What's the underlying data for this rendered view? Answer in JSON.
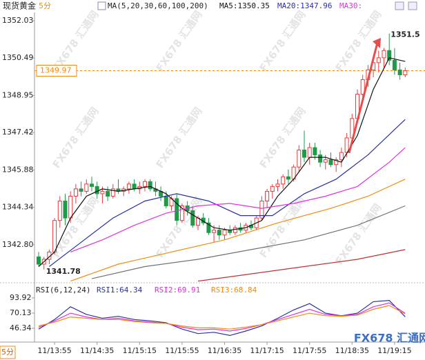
{
  "chart_data": {
    "type": "candlestick",
    "title": "现货黄金",
    "period": "5分",
    "period_button": "5分",
    "ma_legend": "MA(5,20,30,60,100,200)",
    "ma_readouts": [
      "MA5:1350.35",
      "MA20:1347.96",
      "MA30:"
    ],
    "ylim": [
      1341.29,
      1352.37
    ],
    "yticks": [
      {
        "value": 1342.8,
        "label": "1342.80"
      },
      1344.34,
      1345.88,
      1347.42,
      1348.95,
      1350.49,
      1352.03
    ],
    "categories": [
      null,
      null,
      null,
      "11/13:55",
      null,
      null,
      null,
      null,
      null,
      null,
      null,
      "11/14:35",
      null,
      null,
      null,
      null,
      null,
      null,
      null,
      "11/15:15",
      null,
      null,
      null,
      null,
      null,
      null,
      null,
      "11/15:55",
      null,
      null,
      null,
      null,
      null,
      null,
      null,
      "11/16:35",
      null,
      null,
      null,
      null,
      null,
      null,
      null,
      "11/17:15",
      null,
      null,
      null,
      null,
      null,
      null,
      null,
      "11/17:55",
      null,
      null,
      null,
      null,
      null,
      null,
      null,
      "11/18:35",
      null,
      null,
      null,
      null,
      null,
      null,
      null,
      "11/19:15",
      null,
      null
    ],
    "open": [
      1342.3,
      1342.0,
      1342.2,
      1342.5,
      1343.8,
      1344.6,
      1343.9,
      1344.8,
      1345.1,
      1345.0,
      1345.3,
      1345.2,
      1344.9,
      1345.0,
      1344.8,
      1345.1,
      1345.0,
      1345.1,
      1345.3,
      1345.1,
      1345.2,
      1345.4,
      1345.1,
      1345.0,
      1344.8,
      1344.4,
      1344.7,
      1343.8,
      1344.4,
      1344.2,
      1343.6,
      1343.9,
      1343.7,
      1343.3,
      1343.4,
      1343.2,
      1343.4,
      1343.3,
      1343.5,
      1343.4,
      1343.6,
      1343.5,
      1343.9,
      1344.6,
      1345.0,
      1345.2,
      1345.3,
      1345.6,
      1345.5,
      1346.0,
      1346.7,
      1346.4,
      1346.8,
      1346.5,
      1346.2,
      1346.3,
      1346.1,
      1346.3,
      1346.6,
      1347.2,
      1348.0,
      1349.0,
      1349.6,
      1350.0,
      1350.3,
      1350.5,
      1350.8,
      1350.4,
      1350.0,
      1349.8
    ],
    "high": [
      1342.5,
      1342.3,
      1342.6,
      1343.9,
      1344.8,
      1344.9,
      1345.0,
      1345.3,
      1345.4,
      1345.5,
      1345.6,
      1345.4,
      1345.2,
      1345.2,
      1345.3,
      1345.5,
      1345.2,
      1345.4,
      1345.5,
      1345.4,
      1345.5,
      1345.5,
      1345.4,
      1345.2,
      1345.0,
      1344.8,
      1344.9,
      1344.5,
      1344.6,
      1344.4,
      1344.0,
      1344.1,
      1343.9,
      1343.6,
      1343.6,
      1343.5,
      1343.6,
      1343.6,
      1343.7,
      1343.7,
      1343.8,
      1344.0,
      1344.8,
      1345.1,
      1345.3,
      1345.5,
      1345.7,
      1345.9,
      1346.1,
      1346.9,
      1347.5,
      1347.0,
      1347.0,
      1346.7,
      1346.5,
      1346.6,
      1346.4,
      1346.8,
      1347.4,
      1348.2,
      1349.2,
      1349.8,
      1350.2,
      1350.6,
      1350.8,
      1350.9,
      1351.5,
      1350.9,
      1350.3,
      1350.1
    ],
    "low": [
      1341.9,
      1341.78,
      1342.0,
      1342.4,
      1343.5,
      1343.6,
      1343.7,
      1344.5,
      1344.8,
      1344.9,
      1345.0,
      1344.7,
      1344.5,
      1344.6,
      1344.7,
      1344.9,
      1344.8,
      1344.9,
      1345.0,
      1344.9,
      1345.0,
      1345.0,
      1344.8,
      1344.6,
      1344.3,
      1344.2,
      1343.6,
      1343.7,
      1344.0,
      1343.5,
      1343.4,
      1343.6,
      1343.2,
      1342.9,
      1343.0,
      1343.0,
      1343.2,
      1343.2,
      1343.3,
      1343.3,
      1343.4,
      1343.4,
      1343.8,
      1344.3,
      1344.7,
      1345.0,
      1345.1,
      1345.3,
      1345.4,
      1345.8,
      1346.2,
      1346.1,
      1346.3,
      1346.0,
      1345.9,
      1346.0,
      1345.8,
      1346.0,
      1346.4,
      1347.0,
      1347.8,
      1348.7,
      1349.3,
      1349.7,
      1349.9,
      1350.1,
      1350.2,
      1349.8,
      1349.6,
      1349.7
    ],
    "close": [
      1342.0,
      1342.2,
      1342.5,
      1343.8,
      1344.6,
      1343.9,
      1344.8,
      1345.1,
      1345.0,
      1345.3,
      1345.2,
      1344.9,
      1345.0,
      1344.8,
      1345.1,
      1345.0,
      1345.1,
      1345.3,
      1345.1,
      1345.2,
      1345.4,
      1345.1,
      1345.0,
      1344.8,
      1344.4,
      1344.7,
      1343.8,
      1344.4,
      1344.2,
      1343.6,
      1343.9,
      1343.7,
      1343.3,
      1343.4,
      1343.2,
      1343.4,
      1343.3,
      1343.5,
      1343.4,
      1343.6,
      1343.5,
      1343.9,
      1344.6,
      1345.0,
      1345.2,
      1345.3,
      1345.6,
      1345.5,
      1346.0,
      1346.7,
      1346.4,
      1346.8,
      1346.5,
      1346.2,
      1346.3,
      1346.1,
      1346.3,
      1346.6,
      1347.2,
      1348.0,
      1349.0,
      1349.6,
      1350.0,
      1350.3,
      1350.5,
      1350.8,
      1350.4,
      1350.0,
      1349.8,
      1349.97
    ],
    "up_color": "#e8393a",
    "down_color": "#1e9a48",
    "low_label": "1341.78",
    "high_label": "1351.5",
    "current_price": {
      "value": 1349.97,
      "label": "1349.97"
    },
    "series": [
      {
        "color": "#111111",
        "x": [
          0,
          3,
          6,
          9,
          12,
          15,
          18,
          21,
          24,
          27,
          30,
          33,
          36,
          39,
          42,
          45,
          48,
          51,
          54,
          57,
          60,
          63,
          66,
          69
        ],
        "values": [
          1341.9,
          1342.5,
          1343.9,
          1344.8,
          1345.1,
          1345.0,
          1345.1,
          1345.2,
          1344.9,
          1344.3,
          1343.9,
          1343.5,
          1343.4,
          1343.5,
          1343.8,
          1344.8,
          1345.5,
          1346.4,
          1346.4,
          1346.2,
          1347.3,
          1349.2,
          1350.5,
          1350.35
        ]
      },
      {
        "color": "#2830a0",
        "x": [
          2,
          8,
          14,
          20,
          26,
          32,
          38,
          44,
          50,
          56,
          62,
          69
        ],
        "values": [
          1341.9,
          1342.9,
          1343.9,
          1344.6,
          1344.9,
          1344.6,
          1344.0,
          1344.0,
          1344.9,
          1345.5,
          1346.5,
          1347.96
        ]
      },
      {
        "color": "#e030e0",
        "x": [
          6,
          12,
          18,
          24,
          30,
          36,
          42,
          48,
          54,
          60,
          66,
          69
        ],
        "values": [
          1342.5,
          1343.0,
          1343.6,
          1344.1,
          1344.4,
          1344.5,
          1344.3,
          1344.5,
          1344.8,
          1345.2,
          1346.2,
          1346.8
        ]
      },
      {
        "color": "#f08a10",
        "x": [
          6,
          15,
          25,
          35,
          45,
          55,
          62,
          69
        ],
        "values": [
          1341.3,
          1342.0,
          1342.5,
          1343.0,
          1343.7,
          1344.3,
          1344.8,
          1345.5
        ]
      },
      {
        "color": "#707070",
        "x": [
          10,
          20,
          30,
          40,
          50,
          60,
          69
        ],
        "values": [
          1341.4,
          1341.9,
          1342.2,
          1342.6,
          1343.0,
          1343.6,
          1344.4
        ]
      },
      {
        "color": "#c03030",
        "x": [
          30,
          40,
          50,
          60,
          69
        ],
        "values": [
          1341.3,
          1341.6,
          1341.9,
          1342.2,
          1342.6
        ]
      }
    ],
    "rsi": {
      "legend": "RSI(6,12,24)",
      "readouts": [
        "RSI1:64.34",
        "RSI2:69.91",
        "RSI3:68.84"
      ],
      "ylim": [
        29,
        109
      ],
      "yticks": [
        46.34,
        70.13,
        93.92
      ],
      "series": [
        {
          "color": "#2830a0",
          "x": [
            0,
            3,
            6,
            9,
            12,
            15,
            18,
            21,
            24,
            27,
            30,
            33,
            36,
            39,
            42,
            45,
            48,
            51,
            54,
            57,
            60,
            63,
            66,
            69
          ],
          "values": [
            45,
            60,
            80,
            68,
            62,
            65,
            60,
            58,
            55,
            45,
            38,
            40,
            35,
            42,
            50,
            62,
            75,
            85,
            70,
            66,
            70,
            88,
            90,
            64.34
          ]
        },
        {
          "color": "#e030e0",
          "x": [
            0,
            3,
            6,
            9,
            12,
            15,
            18,
            21,
            24,
            27,
            30,
            33,
            36,
            39,
            42,
            45,
            48,
            51,
            54,
            57,
            60,
            63,
            66,
            69
          ],
          "values": [
            48,
            58,
            70,
            64,
            60,
            62,
            58,
            56,
            54,
            48,
            44,
            45,
            42,
            46,
            52,
            60,
            68,
            76,
            68,
            66,
            68,
            80,
            86,
            69.91
          ]
        },
        {
          "color": "#f08a10",
          "x": [
            0,
            3,
            6,
            9,
            12,
            15,
            18,
            21,
            24,
            27,
            30,
            33,
            36,
            39,
            42,
            45,
            48,
            51,
            54,
            57,
            60,
            63,
            66,
            69
          ],
          "values": [
            50,
            56,
            64,
            62,
            60,
            60,
            57,
            55,
            54,
            50,
            47,
            47,
            45,
            48,
            52,
            58,
            64,
            70,
            66,
            65,
            67,
            76,
            82,
            68.84
          ]
        }
      ]
    },
    "watermark": "FX678 汇通网",
    "logo": "FX678 汇通网"
  }
}
